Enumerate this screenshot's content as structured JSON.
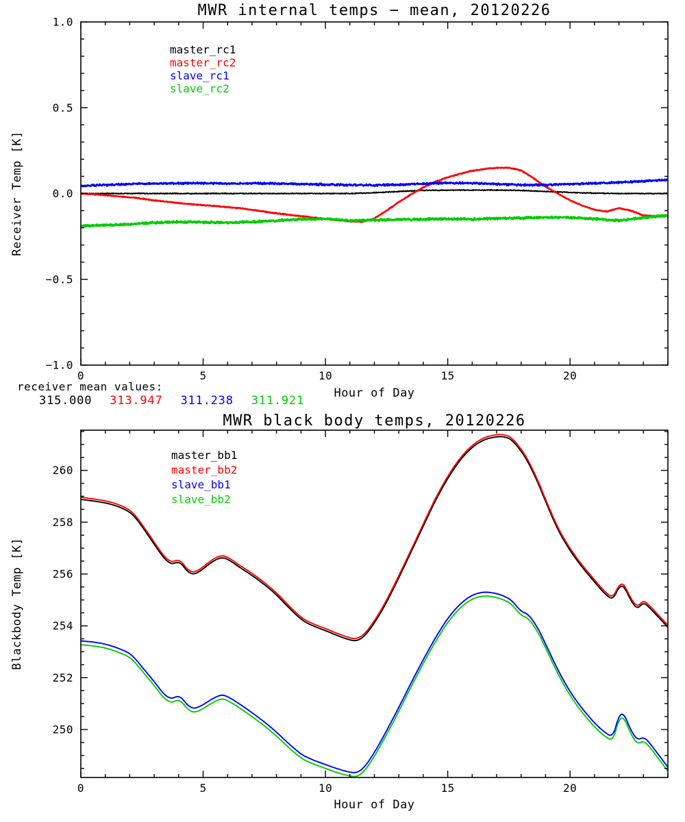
{
  "page": {
    "background": "#ffffff"
  },
  "annotations": {
    "receiver_mean_label": "receiver mean values:",
    "means": [
      {
        "series": "master_rc1",
        "value": "315.000",
        "color": "#000000"
      },
      {
        "series": "master_rc2",
        "value": "313.947",
        "color": "#ff0000"
      },
      {
        "series": "slave_rc1",
        "value": "311.238",
        "color": "#0000ff"
      },
      {
        "series": "slave_rc2",
        "value": "311.921",
        "color": "#00cc00"
      }
    ]
  },
  "chart_data": [
    {
      "type": "line",
      "title": "MWR internal temps − mean, 20120226",
      "xlabel": "Hour of Day",
      "ylabel": "Receiver Temp [K]",
      "xlim": [
        0,
        24
      ],
      "ylim": [
        -1.0,
        1.0
      ],
      "xticks": [
        0,
        5,
        10,
        15,
        20
      ],
      "xtick_labels": [
        "0",
        "5",
        "10",
        "15",
        "20"
      ],
      "yticks": [
        -1.0,
        -0.5,
        0.0,
        0.5,
        1.0
      ],
      "ytick_labels": [
        "−1.0",
        "−0.5",
        "0.0",
        "0.5",
        "1.0"
      ],
      "xminor": 1,
      "yminor": 0.1,
      "grid": false,
      "legend_position": "upper-left-inside",
      "series": [
        {
          "label": "master_rc1",
          "color": "#000000",
          "x": [
            0,
            1,
            2,
            3,
            4,
            5,
            6,
            7,
            8,
            9,
            10,
            11,
            12,
            13,
            14,
            15,
            16,
            17,
            18,
            19,
            20,
            21,
            22,
            23,
            24
          ],
          "y": [
            0.0,
            0.0,
            0.0,
            0.0,
            0.0,
            0.0,
            0.0,
            0.0,
            0.0,
            0.0,
            0.0,
            0.0,
            0.005,
            0.012,
            0.018,
            0.02,
            0.02,
            0.02,
            0.018,
            0.012,
            0.006,
            0.002,
            0.0,
            0.0,
            0.0
          ]
        },
        {
          "label": "master_rc2",
          "color": "#ff0000",
          "x": [
            0,
            0.5,
            1,
            1.5,
            2,
            2.5,
            3,
            3.5,
            4,
            4.5,
            5,
            5.5,
            6,
            6.5,
            7,
            7.5,
            8,
            8.5,
            9,
            9.5,
            10,
            10.5,
            11,
            11.5,
            12,
            12.5,
            13,
            13.5,
            14,
            14.5,
            15,
            15.5,
            16,
            16.5,
            17,
            17.5,
            18,
            18.5,
            19,
            19.5,
            20,
            20.5,
            21,
            21.5,
            22,
            22.5,
            23,
            23.5,
            24
          ],
          "y": [
            0.0,
            -0.004,
            -0.01,
            -0.016,
            -0.022,
            -0.03,
            -0.04,
            -0.048,
            -0.056,
            -0.062,
            -0.068,
            -0.073,
            -0.079,
            -0.086,
            -0.095,
            -0.105,
            -0.115,
            -0.124,
            -0.132,
            -0.14,
            -0.148,
            -0.155,
            -0.162,
            -0.165,
            -0.145,
            -0.1,
            -0.05,
            -0.005,
            0.035,
            0.068,
            0.095,
            0.115,
            0.132,
            0.143,
            0.149,
            0.15,
            0.135,
            0.09,
            0.04,
            0.0,
            -0.04,
            -0.07,
            -0.095,
            -0.105,
            -0.085,
            -0.1,
            -0.128,
            -0.132,
            -0.13
          ]
        },
        {
          "label": "slave_rc1",
          "color": "#0000ff",
          "x": [
            0,
            1,
            2,
            3,
            4,
            5,
            6,
            7,
            8,
            9,
            10,
            11,
            12,
            13,
            14,
            15,
            16,
            17,
            18,
            19,
            20,
            21,
            22,
            23,
            24
          ],
          "y": [
            0.045,
            0.05,
            0.055,
            0.058,
            0.06,
            0.06,
            0.058,
            0.06,
            0.058,
            0.055,
            0.052,
            0.05,
            0.048,
            0.052,
            0.058,
            0.062,
            0.06,
            0.055,
            0.05,
            0.05,
            0.055,
            0.06,
            0.065,
            0.072,
            0.08
          ]
        },
        {
          "label": "slave_rc2",
          "color": "#00cc00",
          "x": [
            0,
            1,
            2,
            3,
            4,
            5,
            6,
            7,
            8,
            9,
            10,
            11,
            12,
            13,
            14,
            15,
            16,
            17,
            18,
            19,
            20,
            21,
            22,
            23,
            24
          ],
          "y": [
            -0.19,
            -0.185,
            -0.178,
            -0.17,
            -0.165,
            -0.168,
            -0.17,
            -0.165,
            -0.158,
            -0.15,
            -0.148,
            -0.158,
            -0.155,
            -0.152,
            -0.15,
            -0.148,
            -0.15,
            -0.145,
            -0.143,
            -0.14,
            -0.14,
            -0.148,
            -0.158,
            -0.14,
            -0.128
          ]
        }
      ]
    },
    {
      "type": "line",
      "title": "MWR black body temps, 20120226",
      "xlabel": "Hour of Day",
      "ylabel": "Blackbody Temp [K]",
      "xlim": [
        0,
        24
      ],
      "ylim": [
        248.15,
        261.55
      ],
      "xticks": [
        0,
        5,
        10,
        15,
        20
      ],
      "xtick_labels": [
        "0",
        "5",
        "10",
        "15",
        "20"
      ],
      "yticks": [
        250,
        252,
        254,
        256,
        258,
        260
      ],
      "ytick_labels": [
        "250",
        "252",
        "254",
        "256",
        "258",
        "260"
      ],
      "xminor": 1,
      "yminor": 0.5,
      "grid": false,
      "legend_position": "upper-left-inside",
      "x": [
        0,
        0.5,
        1,
        1.5,
        2,
        2.3,
        2.6,
        3,
        3.4,
        3.7,
        3.9,
        4.1,
        4.35,
        4.6,
        4.9,
        5.2,
        5.5,
        5.8,
        6.1,
        6.5,
        7,
        7.5,
        8,
        8.5,
        9,
        9.3,
        9.7,
        10,
        10.5,
        11,
        11.3,
        11.6,
        12,
        12.5,
        13,
        13.5,
        14,
        14.5,
        15,
        15.5,
        16,
        16.5,
        17,
        17.3,
        17.6,
        18,
        18.3,
        18.7,
        19,
        19.5,
        20,
        20.5,
        21,
        21.4,
        21.75,
        22,
        22.2,
        22.5,
        22.75,
        23,
        23.2,
        23.6,
        24
      ],
      "series": [
        {
          "label": "master_bb1",
          "color": "#000000",
          "y": [
            258.88,
            258.82,
            258.75,
            258.62,
            258.4,
            258.1,
            257.7,
            257.15,
            256.6,
            256.38,
            256.45,
            256.42,
            256.1,
            255.98,
            256.12,
            256.35,
            256.55,
            256.65,
            256.52,
            256.25,
            255.95,
            255.6,
            255.2,
            254.7,
            254.25,
            254.08,
            253.92,
            253.82,
            253.62,
            253.45,
            253.42,
            253.6,
            254.1,
            254.9,
            255.85,
            256.85,
            257.85,
            258.85,
            259.7,
            260.4,
            260.9,
            261.2,
            261.3,
            261.3,
            261.2,
            260.75,
            260.3,
            259.5,
            258.8,
            257.7,
            256.9,
            256.25,
            255.7,
            255.25,
            255.0,
            255.5,
            255.55,
            254.95,
            254.65,
            254.9,
            254.75,
            254.35,
            253.95
          ]
        },
        {
          "label": "master_bb2",
          "color": "#ff0000",
          "y": [
            258.96,
            258.9,
            258.83,
            258.7,
            258.48,
            258.18,
            257.78,
            257.23,
            256.68,
            256.46,
            256.53,
            256.5,
            256.18,
            256.06,
            256.2,
            256.43,
            256.63,
            256.73,
            256.6,
            256.33,
            256.03,
            255.68,
            255.28,
            254.78,
            254.33,
            254.16,
            254.0,
            253.9,
            253.7,
            253.53,
            253.5,
            253.68,
            254.18,
            254.98,
            255.93,
            256.93,
            257.93,
            258.93,
            259.78,
            260.48,
            260.98,
            261.28,
            261.38,
            261.38,
            261.28,
            260.83,
            260.38,
            259.58,
            258.88,
            257.78,
            256.98,
            256.33,
            255.78,
            255.33,
            255.08,
            255.58,
            255.63,
            255.03,
            254.73,
            254.98,
            254.83,
            254.43,
            254.03
          ]
        },
        {
          "label": "slave_bb1",
          "color": "#0000ff",
          "y": [
            253.42,
            253.38,
            253.3,
            253.15,
            252.95,
            252.65,
            252.3,
            251.85,
            251.35,
            251.18,
            251.28,
            251.25,
            250.95,
            250.8,
            250.9,
            251.08,
            251.25,
            251.35,
            251.22,
            250.98,
            250.65,
            250.3,
            249.9,
            249.45,
            249.05,
            248.9,
            248.75,
            248.65,
            248.48,
            248.35,
            248.33,
            248.55,
            249.1,
            249.95,
            250.85,
            251.8,
            252.7,
            253.55,
            254.3,
            254.85,
            255.2,
            255.32,
            255.25,
            255.15,
            255.0,
            254.55,
            254.45,
            253.9,
            253.3,
            252.3,
            251.45,
            250.8,
            250.25,
            249.9,
            249.7,
            250.55,
            250.62,
            249.95,
            249.6,
            249.7,
            249.55,
            249.05,
            248.55
          ]
        },
        {
          "label": "slave_bb2",
          "color": "#00cc00",
          "y": [
            253.27,
            253.23,
            253.15,
            253.0,
            252.8,
            252.5,
            252.15,
            251.7,
            251.2,
            251.03,
            251.13,
            251.1,
            250.8,
            250.65,
            250.75,
            250.93,
            251.1,
            251.2,
            251.07,
            250.83,
            250.5,
            250.15,
            249.75,
            249.3,
            248.9,
            248.75,
            248.6,
            248.5,
            248.33,
            248.2,
            248.18,
            248.4,
            248.95,
            249.8,
            250.7,
            251.65,
            252.55,
            253.4,
            254.15,
            254.7,
            255.05,
            255.17,
            255.1,
            255.0,
            254.85,
            254.4,
            254.3,
            253.75,
            253.15,
            252.15,
            251.3,
            250.65,
            250.1,
            249.75,
            249.55,
            250.4,
            250.47,
            249.8,
            249.45,
            249.55,
            249.4,
            248.9,
            248.4
          ]
        }
      ]
    }
  ]
}
